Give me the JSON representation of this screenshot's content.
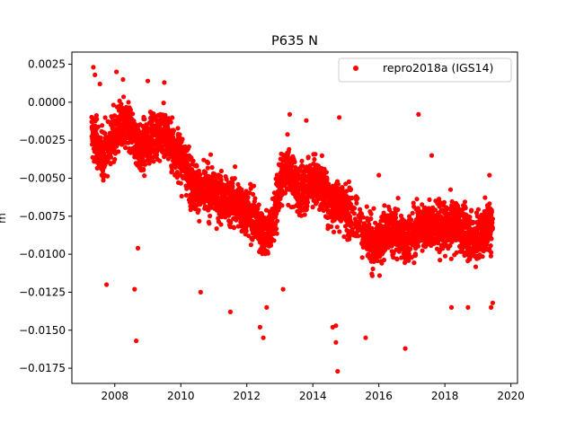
{
  "chart_data": {
    "type": "scatter",
    "title": "P635 N",
    "xlabel": "",
    "ylabel": "m",
    "xlim": [
      2006.7,
      2020.2
    ],
    "ylim": [
      -0.0185,
      0.0033
    ],
    "xticks": [
      2008,
      2010,
      2012,
      2014,
      2016,
      2018,
      2020
    ],
    "yticks": [
      0.0025,
      0.0,
      -0.0025,
      -0.005,
      -0.0075,
      -0.01,
      -0.0125,
      -0.015,
      -0.0175
    ],
    "xtick_labels": [
      "2008",
      "2010",
      "2012",
      "2014",
      "2016",
      "2018",
      "2020"
    ],
    "ytick_labels": [
      "0.0025",
      "0.0000",
      "−0.0025",
      "−0.0050",
      "−0.0075",
      "−0.0100",
      "−0.0125",
      "−0.0150",
      "−0.0175"
    ],
    "grid": false,
    "legend_position": "top-right",
    "series": [
      {
        "name": "repro2018a (IGS14)",
        "color": "#ff0000",
        "marker": "circle",
        "trend": [
          [
            2007.3,
            -0.002
          ],
          [
            2007.6,
            -0.0035
          ],
          [
            2007.9,
            -0.0025
          ],
          [
            2008.2,
            -0.0015
          ],
          [
            2008.5,
            -0.002
          ],
          [
            2008.8,
            -0.0032
          ],
          [
            2009.1,
            -0.0022
          ],
          [
            2009.5,
            -0.002
          ],
          [
            2009.8,
            -0.003
          ],
          [
            2010.1,
            -0.004
          ],
          [
            2010.4,
            -0.0055
          ],
          [
            2010.7,
            -0.006
          ],
          [
            2011.0,
            -0.0058
          ],
          [
            2011.3,
            -0.0065
          ],
          [
            2011.6,
            -0.0065
          ],
          [
            2011.9,
            -0.007
          ],
          [
            2012.2,
            -0.0075
          ],
          [
            2012.4,
            -0.0083
          ],
          [
            2012.6,
            -0.0088
          ],
          [
            2012.8,
            -0.008
          ],
          [
            2013.0,
            -0.0055
          ],
          [
            2013.2,
            -0.0045
          ],
          [
            2013.4,
            -0.005
          ],
          [
            2013.6,
            -0.006
          ],
          [
            2013.8,
            -0.0055
          ],
          [
            2014.0,
            -0.005
          ],
          [
            2014.2,
            -0.0055
          ],
          [
            2014.4,
            -0.006
          ],
          [
            2014.6,
            -0.0068
          ],
          [
            2014.8,
            -0.0065
          ],
          [
            2015.0,
            -0.007
          ],
          [
            2015.3,
            -0.0075
          ],
          [
            2015.6,
            -0.009
          ],
          [
            2015.9,
            -0.0095
          ],
          [
            2016.2,
            -0.0085
          ],
          [
            2016.5,
            -0.0085
          ],
          [
            2016.8,
            -0.009
          ],
          [
            2017.1,
            -0.0085
          ],
          [
            2017.4,
            -0.008
          ],
          [
            2017.7,
            -0.0082
          ],
          [
            2018.0,
            -0.0085
          ],
          [
            2018.3,
            -0.008
          ],
          [
            2018.6,
            -0.0085
          ],
          [
            2018.9,
            -0.009
          ],
          [
            2019.2,
            -0.0085
          ],
          [
            2019.4,
            -0.008
          ]
        ],
        "outliers": [
          [
            2007.35,
            0.0023
          ],
          [
            2007.4,
            0.0018
          ],
          [
            2007.55,
            0.0012
          ],
          [
            2007.75,
            -0.012
          ],
          [
            2008.05,
            0.002
          ],
          [
            2008.25,
            0.0015
          ],
          [
            2008.6,
            -0.0123
          ],
          [
            2008.65,
            -0.0157
          ],
          [
            2008.7,
            -0.0096
          ],
          [
            2009.0,
            0.0014
          ],
          [
            2009.5,
            0.0013
          ],
          [
            2010.6,
            -0.0125
          ],
          [
            2011.5,
            -0.0138
          ],
          [
            2012.4,
            -0.0148
          ],
          [
            2012.5,
            -0.0155
          ],
          [
            2012.6,
            -0.0135
          ],
          [
            2013.1,
            -0.0123
          ],
          [
            2013.3,
            -0.0008
          ],
          [
            2013.8,
            -0.0012
          ],
          [
            2014.6,
            -0.0148
          ],
          [
            2014.7,
            -0.0147
          ],
          [
            2014.7,
            -0.0158
          ],
          [
            2014.75,
            -0.0177
          ],
          [
            2014.8,
            -0.001
          ],
          [
            2015.6,
            -0.0155
          ],
          [
            2016.8,
            -0.0162
          ],
          [
            2017.2,
            -0.0008
          ],
          [
            2018.2,
            -0.0135
          ],
          [
            2018.7,
            -0.0135
          ],
          [
            2019.4,
            -0.0135
          ],
          [
            2019.45,
            -0.0132
          ],
          [
            2017.6,
            -0.0035
          ],
          [
            2016.0,
            -0.0048
          ],
          [
            2019.35,
            -0.0048
          ]
        ],
        "spread": 0.0013,
        "x_start": 2007.3,
        "x_end": 2019.45
      }
    ]
  }
}
